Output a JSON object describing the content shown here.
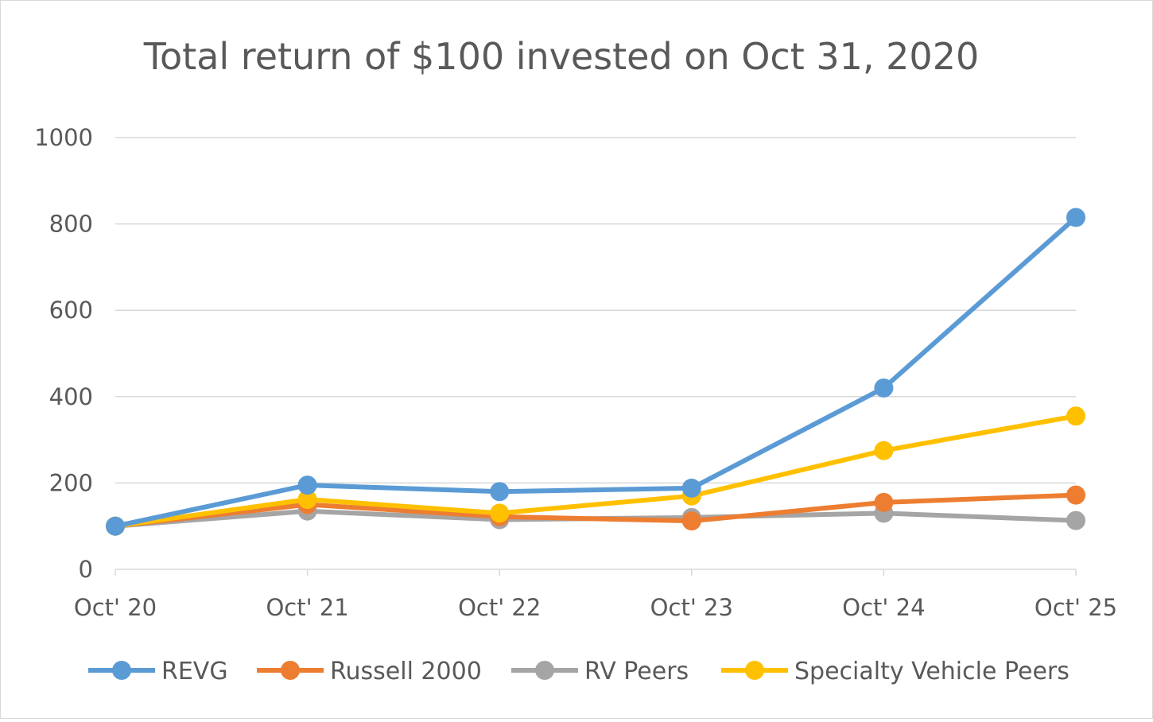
{
  "chart_data": {
    "type": "line",
    "title": "Total return of $100 invested on Oct 31, 2020",
    "xlabel": "",
    "ylabel": "",
    "categories": [
      "Oct' 20",
      "Oct' 21",
      "Oct' 22",
      "Oct' 23",
      "Oct' 24",
      "Oct' 25"
    ],
    "ylim": [
      0,
      1000
    ],
    "yticks": [
      "0",
      "200",
      "400",
      "600",
      "800",
      "1000"
    ],
    "grid": true,
    "legend_position": "bottom",
    "series": [
      {
        "name": "RV Peers",
        "color": "#a5a5a5",
        "values": [
          100,
          135,
          115,
          120,
          130,
          113
        ]
      },
      {
        "name": "Russell 2000",
        "color": "#ed7d31",
        "values": [
          100,
          150,
          122,
          112,
          155,
          172
        ]
      },
      {
        "name": "Specialty Vehicle Peers",
        "color": "#ffc000",
        "values": [
          100,
          162,
          130,
          170,
          275,
          355
        ]
      },
      {
        "name": "REVG",
        "color": "#5b9bd5",
        "values": [
          100,
          195,
          180,
          188,
          420,
          815
        ]
      }
    ],
    "legend_order": [
      "REVG",
      "Russell 2000",
      "RV Peers",
      "Specialty Vehicle Peers"
    ]
  }
}
